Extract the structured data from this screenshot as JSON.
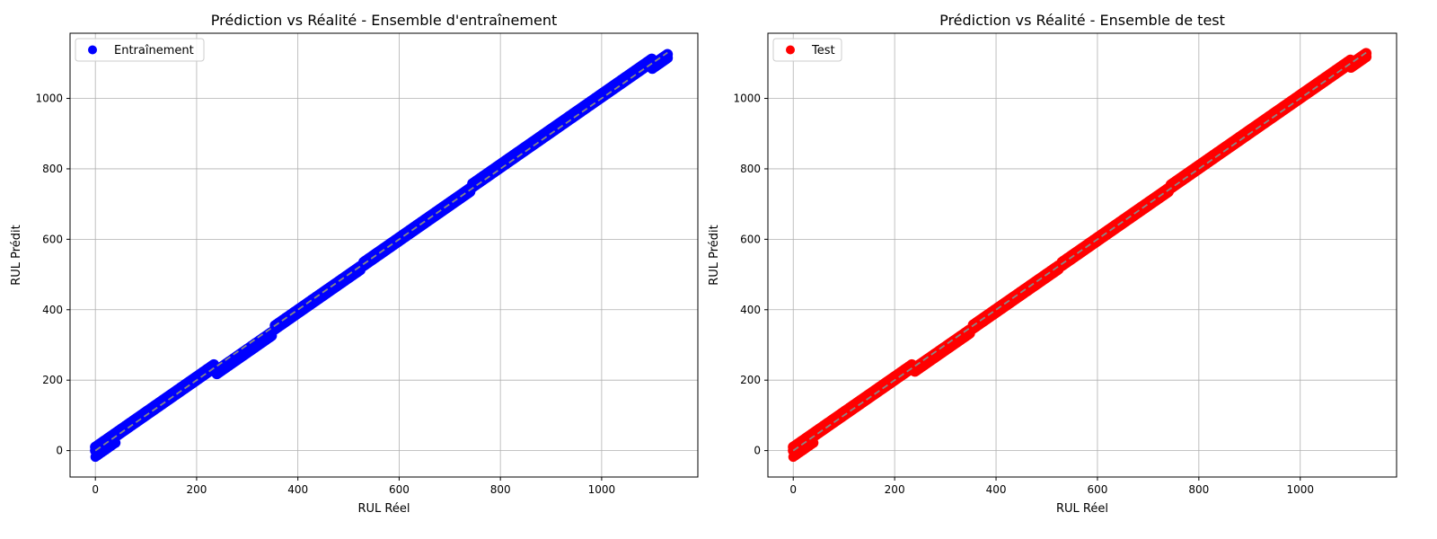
{
  "chart_data": [
    {
      "type": "scatter",
      "title": "Prédiction vs Réalité - Ensemble d'entraînement",
      "xlabel": "RUL Réel",
      "ylabel": "RUL Prédit",
      "xlim": [
        -50,
        1190
      ],
      "ylim": [
        -75,
        1185
      ],
      "xticks": [
        0,
        200,
        400,
        600,
        800,
        1000
      ],
      "yticks": [
        0,
        200,
        400,
        600,
        800,
        1000
      ],
      "grid": true,
      "legend_position": "top-left",
      "reference_line": {
        "from": [
          0,
          0
        ],
        "to": [
          1130,
          1130
        ],
        "style": "dashed",
        "color": "#888888"
      },
      "series": [
        {
          "name": "Entraînement",
          "color": "#0000ff",
          "segments": [
            {
              "x_range": [
                0,
                235
              ],
              "offset": 0
            },
            {
              "x_range": [
                240,
                350
              ],
              "offset": -22
            },
            {
              "x_range": [
                355,
                525
              ],
              "offset": -10
            },
            {
              "x_range": [
                530,
                740
              ],
              "offset": -5
            },
            {
              "x_range": [
                745,
                1100
              ],
              "offset": 3
            },
            {
              "x_range": [
                1100,
                1130
              ],
              "offset": -15
            }
          ]
        }
      ]
    },
    {
      "type": "scatter",
      "title": "Prédiction vs Réalité - Ensemble de test",
      "xlabel": "RUL Réel",
      "ylabel": "RUL Prédit",
      "xlim": [
        -50,
        1190
      ],
      "ylim": [
        -75,
        1185
      ],
      "xticks": [
        0,
        200,
        400,
        600,
        800,
        1000
      ],
      "yticks": [
        0,
        200,
        400,
        600,
        800,
        1000
      ],
      "grid": true,
      "legend_position": "top-left",
      "reference_line": {
        "from": [
          0,
          0
        ],
        "to": [
          1130,
          1130
        ],
        "style": "dashed",
        "color": "#888888"
      },
      "series": [
        {
          "name": "Test",
          "color": "#ff0000",
          "segments": [
            {
              "x_range": [
                0,
                235
              ],
              "offset": 0
            },
            {
              "x_range": [
                240,
                350
              ],
              "offset": -15
            },
            {
              "x_range": [
                355,
                525
              ],
              "offset": -8
            },
            {
              "x_range": [
                530,
                740
              ],
              "offset": -5
            },
            {
              "x_range": [
                745,
                1100
              ],
              "offset": 0
            },
            {
              "x_range": [
                1100,
                1130
              ],
              "offset": -12
            }
          ]
        }
      ]
    }
  ]
}
